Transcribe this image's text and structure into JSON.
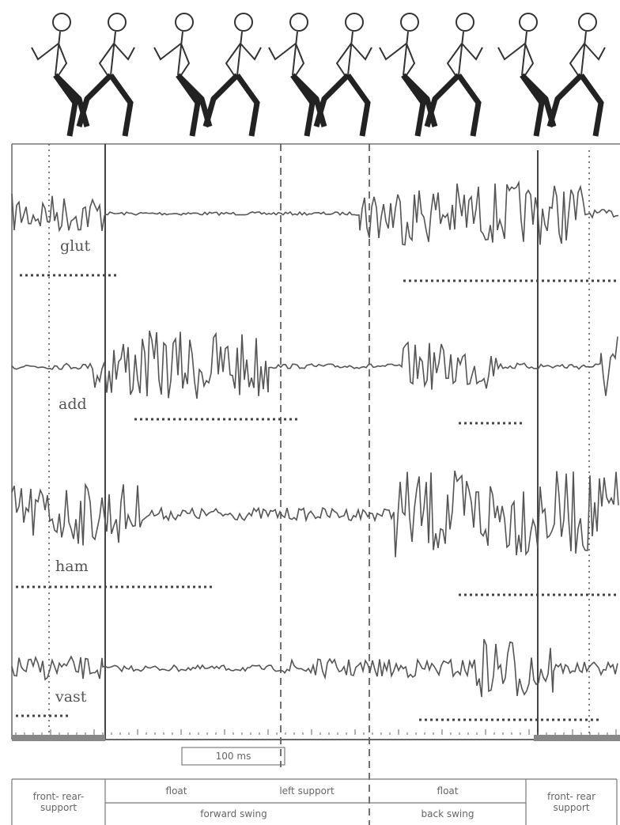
{
  "labels": {
    "muscles": [
      "glut",
      "add",
      "ham",
      "vast"
    ],
    "scale": "100 ms"
  },
  "table": {
    "row1": [
      "front- rear- support",
      "float",
      "left support",
      "float",
      "front- rear support"
    ],
    "row2": [
      "forward swing",
      "back swing"
    ]
  }
}
